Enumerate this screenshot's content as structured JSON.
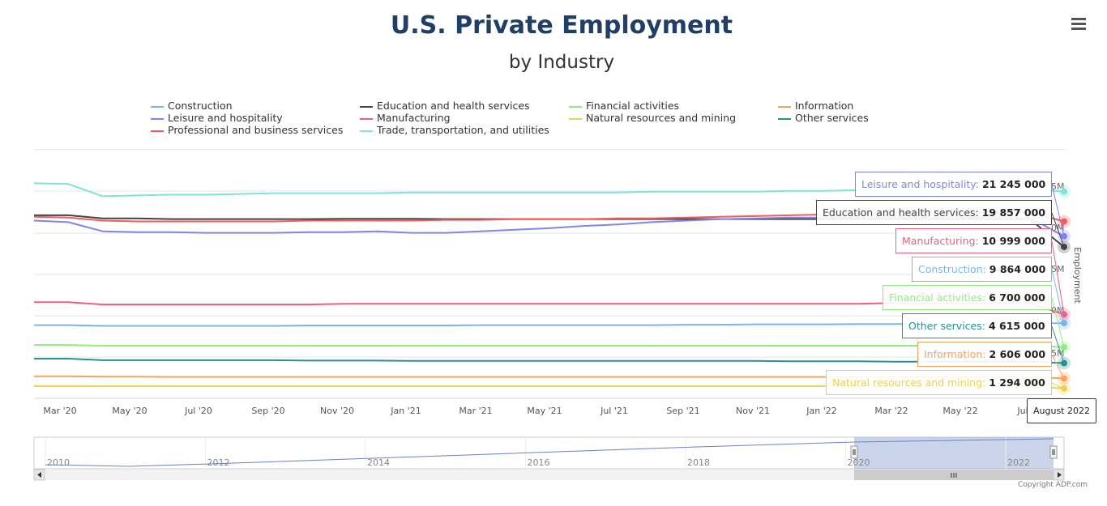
{
  "chart_data": {
    "type": "line",
    "title": "U.S. Private Employment",
    "subtitle": "by Industry",
    "ylabel": "Employment",
    "yaxis_side": "right",
    "x_tick_labels": [
      "Mar '20",
      "May '20",
      "Jul '20",
      "Sep '20",
      "Nov '20",
      "Jan '21",
      "Mar '21",
      "May '21",
      "Jul '21",
      "Sep '21",
      "Nov '21",
      "Jan '22",
      "Mar '22",
      "May '22",
      "Jul"
    ],
    "y_tick_labels": [
      "5M",
      "0M",
      "5M",
      "0M",
      "5M"
    ],
    "x": [
      "2020-02",
      "2020-03",
      "2020-04",
      "2020-05",
      "2020-06",
      "2020-07",
      "2020-08",
      "2020-09",
      "2020-10",
      "2020-11",
      "2020-12",
      "2021-01",
      "2021-02",
      "2021-03",
      "2021-04",
      "2021-05",
      "2021-06",
      "2021-07",
      "2021-08",
      "2021-09",
      "2021-10",
      "2021-11",
      "2021-12",
      "2022-01",
      "2022-02",
      "2022-03",
      "2022-04",
      "2022-05",
      "2022-06",
      "2022-07",
      "2022-08"
    ],
    "series": [
      {
        "name": "Construction",
        "color": "#7cb5ec",
        "values": [
          9.6,
          9.6,
          9.5,
          9.5,
          9.5,
          9.5,
          9.5,
          9.5,
          9.55,
          9.55,
          9.55,
          9.55,
          9.55,
          9.6,
          9.6,
          9.6,
          9.6,
          9.6,
          9.6,
          9.65,
          9.65,
          9.7,
          9.7,
          9.7,
          9.75,
          9.75,
          9.8,
          9.8,
          9.8,
          9.82,
          9.864
        ]
      },
      {
        "name": "Education and health services",
        "color": "#434348",
        "values": [
          24.0,
          24.0,
          23.6,
          23.6,
          23.5,
          23.5,
          23.5,
          23.5,
          23.5,
          23.55,
          23.55,
          23.55,
          23.5,
          23.5,
          23.5,
          23.5,
          23.5,
          23.5,
          23.5,
          23.5,
          23.5,
          23.5,
          23.5,
          23.5,
          23.5,
          23.5,
          23.5,
          23.5,
          23.5,
          23.5,
          19.857
        ]
      },
      {
        "name": "Financial activities",
        "color": "#90ed7d",
        "values": [
          7.0,
          7.0,
          6.9,
          6.9,
          6.9,
          6.9,
          6.9,
          6.9,
          6.9,
          6.9,
          6.9,
          6.9,
          6.9,
          6.9,
          6.9,
          6.9,
          6.9,
          6.9,
          6.9,
          6.9,
          6.9,
          6.9,
          6.9,
          6.9,
          6.9,
          6.9,
          6.9,
          6.9,
          6.9,
          6.9,
          6.7
        ]
      },
      {
        "name": "Information",
        "color": "#f7a35c",
        "values": [
          2.9,
          2.9,
          2.85,
          2.85,
          2.8,
          2.8,
          2.8,
          2.8,
          2.8,
          2.8,
          2.8,
          2.8,
          2.8,
          2.8,
          2.8,
          2.8,
          2.8,
          2.8,
          2.8,
          2.8,
          2.8,
          2.8,
          2.8,
          2.8,
          2.85,
          2.85,
          2.85,
          2.85,
          2.85,
          2.85,
          2.606
        ]
      },
      {
        "name": "Leisure and hospitality",
        "color": "#8085e9",
        "values": [
          23.3,
          23.1,
          21.9,
          21.8,
          21.8,
          21.7,
          21.7,
          21.7,
          21.8,
          21.8,
          21.9,
          21.7,
          21.7,
          21.9,
          22.1,
          22.3,
          22.6,
          22.8,
          23.1,
          23.3,
          23.5,
          23.6,
          23.7,
          23.7,
          23.7,
          23.7,
          23.7,
          23.7,
          23.7,
          23.7,
          21.245
        ]
      },
      {
        "name": "Manufacturing",
        "color": "#f15c80",
        "values": [
          12.6,
          12.6,
          12.3,
          12.3,
          12.3,
          12.3,
          12.3,
          12.3,
          12.3,
          12.4,
          12.4,
          12.4,
          12.4,
          12.4,
          12.4,
          12.4,
          12.4,
          12.4,
          12.4,
          12.4,
          12.4,
          12.4,
          12.4,
          12.4,
          12.4,
          12.5,
          12.5,
          12.5,
          12.5,
          12.5,
          10.999
        ]
      },
      {
        "name": "Natural resources and mining",
        "color": "#e4d354",
        "values": [
          1.6,
          1.6,
          1.6,
          1.6,
          1.6,
          1.6,
          1.6,
          1.6,
          1.6,
          1.6,
          1.6,
          1.6,
          1.6,
          1.6,
          1.6,
          1.6,
          1.6,
          1.6,
          1.6,
          1.6,
          1.6,
          1.6,
          1.6,
          1.6,
          1.6,
          1.6,
          1.6,
          1.6,
          1.6,
          1.6,
          1.294
        ]
      },
      {
        "name": "Other services",
        "color": "#2b908f",
        "values": [
          5.2,
          5.2,
          5.0,
          5.0,
          5.0,
          5.0,
          5.0,
          5.0,
          4.95,
          4.95,
          4.95,
          4.9,
          4.9,
          4.9,
          4.9,
          4.9,
          4.9,
          4.9,
          4.9,
          4.9,
          4.9,
          4.9,
          4.85,
          4.85,
          4.85,
          4.8,
          4.8,
          4.8,
          4.8,
          4.8,
          4.615
        ]
      },
      {
        "name": "Professional and business services",
        "color": "#f45b5b",
        "values": [
          23.8,
          23.7,
          23.3,
          23.2,
          23.2,
          23.2,
          23.2,
          23.2,
          23.3,
          23.3,
          23.3,
          23.3,
          23.4,
          23.4,
          23.5,
          23.5,
          23.5,
          23.6,
          23.6,
          23.7,
          23.8,
          23.9,
          24.0,
          24.1,
          24.2,
          24.3,
          24.4,
          24.4,
          24.4,
          24.4,
          23.2
        ]
      },
      {
        "name": "Trade, transportation, and utilities",
        "color": "#7fe3d6",
        "values": [
          28.2,
          28.1,
          26.5,
          26.6,
          26.7,
          26.7,
          26.8,
          26.9,
          26.9,
          26.9,
          26.9,
          27.0,
          27.0,
          27.0,
          27.0,
          27.0,
          27.0,
          27.0,
          27.1,
          27.1,
          27.1,
          27.1,
          27.2,
          27.2,
          27.3,
          27.4,
          27.4,
          27.5,
          27.5,
          27.5,
          27.1
        ]
      }
    ],
    "tooltips": [
      {
        "name": "Leisure and hospitality",
        "value": "21 245 000"
      },
      {
        "name": "Education and health services",
        "value": "19 857 000"
      },
      {
        "name": "Manufacturing",
        "value": "10 999 000"
      },
      {
        "name": "Construction",
        "value": "9 864 000"
      },
      {
        "name": "Financial activities",
        "value": "6 700 000"
      },
      {
        "name": "Other services",
        "value": "4 615 000"
      },
      {
        "name": "Information",
        "value": "2 606 000"
      },
      {
        "name": "Natural resources and mining",
        "value": "1 294 000"
      }
    ],
    "hover_date": "August 2022",
    "navigator": {
      "year_labels": [
        "2010",
        "2012",
        "2014",
        "2016",
        "2018",
        "2020",
        "2022"
      ],
      "selected_range": [
        "2020-02",
        "2022-08"
      ]
    },
    "legend_placement": "top"
  },
  "copyright": "Copyright ADP.com"
}
